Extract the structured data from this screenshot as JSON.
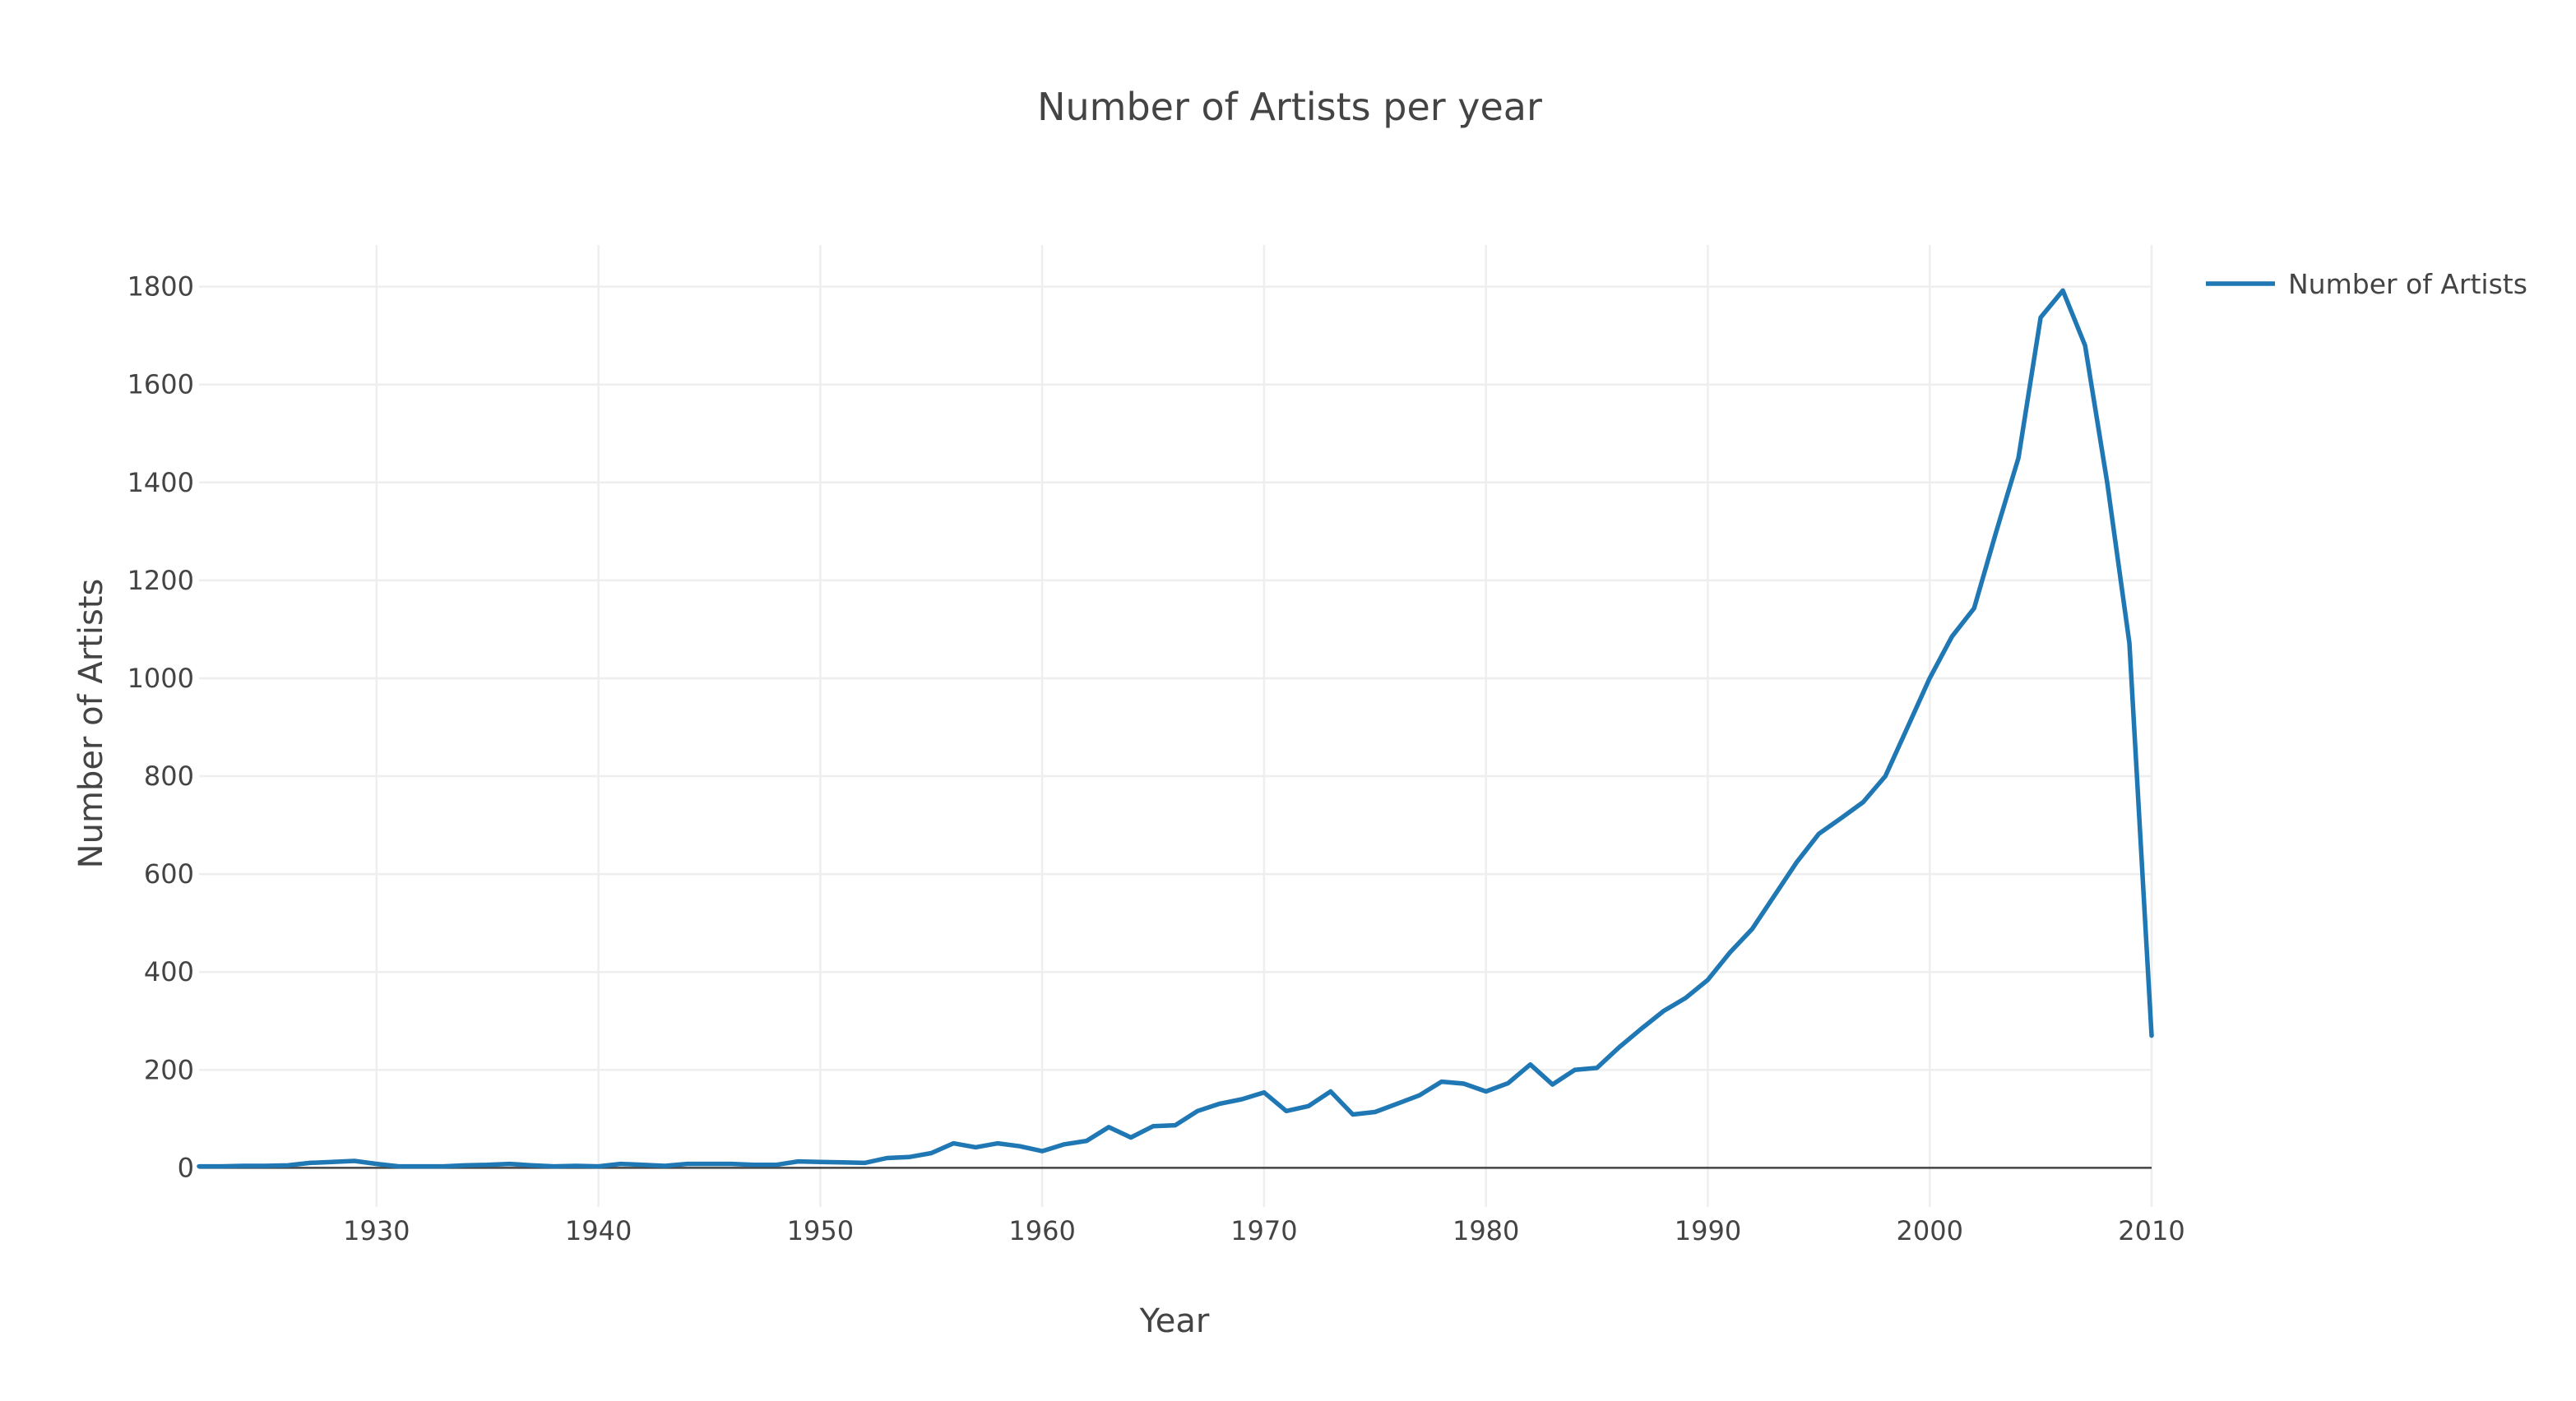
{
  "chart_data": {
    "type": "line",
    "title": "Number of Artists per year",
    "xlabel": "Year",
    "ylabel": "Number of Artists",
    "xlim": [
      1922,
      2010
    ],
    "ylim": [
      -80,
      1885
    ],
    "x_ticks": [
      1930,
      1940,
      1950,
      1960,
      1970,
      1980,
      1990,
      2000,
      2010
    ],
    "y_ticks": [
      0,
      200,
      400,
      600,
      800,
      1000,
      1200,
      1400,
      1600,
      1800
    ],
    "grid": true,
    "legend_position": "top-right",
    "series": [
      {
        "name": "Number of Artists",
        "color": "#1f77b4",
        "x": [
          1922,
          1923,
          1924,
          1925,
          1926,
          1927,
          1928,
          1929,
          1930,
          1931,
          1932,
          1933,
          1934,
          1935,
          1936,
          1937,
          1938,
          1939,
          1940,
          1941,
          1942,
          1943,
          1944,
          1945,
          1946,
          1947,
          1948,
          1949,
          1950,
          1951,
          1952,
          1953,
          1954,
          1955,
          1956,
          1957,
          1958,
          1959,
          1960,
          1961,
          1962,
          1963,
          1964,
          1965,
          1966,
          1967,
          1968,
          1969,
          1970,
          1971,
          1972,
          1973,
          1974,
          1975,
          1976,
          1977,
          1978,
          1979,
          1980,
          1981,
          1982,
          1983,
          1984,
          1985,
          1986,
          1987,
          1988,
          1989,
          1990,
          1991,
          1992,
          1993,
          1994,
          1995,
          1996,
          1997,
          1998,
          1999,
          2000,
          2001,
          2002,
          2003,
          2004,
          2005,
          2006,
          2007,
          2008,
          2009,
          2010
        ],
        "y": [
          3,
          3,
          4,
          4,
          5,
          10,
          12,
          14,
          8,
          3,
          3,
          3,
          5,
          6,
          8,
          5,
          3,
          4,
          3,
          8,
          6,
          4,
          8,
          8,
          8,
          6,
          6,
          13,
          12,
          11,
          10,
          20,
          22,
          30,
          50,
          42,
          50,
          44,
          34,
          48,
          55,
          83,
          62,
          85,
          87,
          116,
          131,
          140,
          154,
          116,
          126,
          156,
          109,
          114,
          131,
          148,
          176,
          172,
          156,
          173,
          211,
          170,
          200,
          204,
          246,
          284,
          320,
          347,
          384,
          440,
          488,
          556,
          624,
          682,
          714,
          747,
          800,
          900,
          1000,
          1085,
          1143,
          1300,
          1450,
          1737,
          1792,
          1680,
          1400,
          1072,
          270
        ]
      }
    ]
  }
}
